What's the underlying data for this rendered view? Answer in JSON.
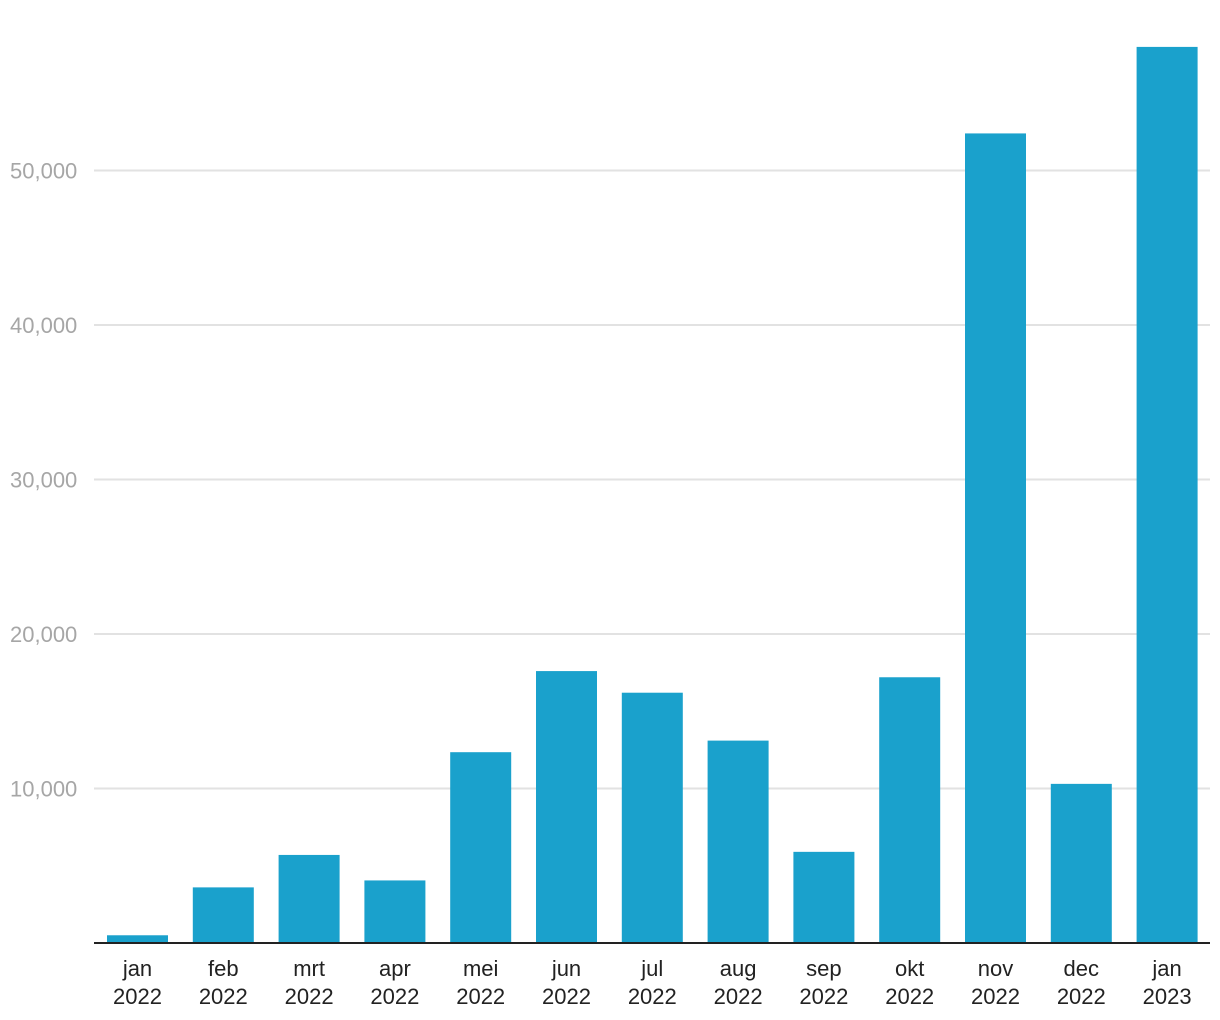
{
  "chart_data": {
    "type": "bar",
    "title": "",
    "xlabel": "",
    "ylabel": "",
    "categories": [
      [
        "jan",
        "2022"
      ],
      [
        "feb",
        "2022"
      ],
      [
        "mrt",
        "2022"
      ],
      [
        "apr",
        "2022"
      ],
      [
        "mei",
        "2022"
      ],
      [
        "jun",
        "2022"
      ],
      [
        "jul",
        "2022"
      ],
      [
        "aug",
        "2022"
      ],
      [
        "sep",
        "2022"
      ],
      [
        "okt",
        "2022"
      ],
      [
        "nov",
        "2022"
      ],
      [
        "dec",
        "2022"
      ],
      [
        "jan",
        "2023"
      ]
    ],
    "values": [
      500,
      3600,
      5700,
      4050,
      12350,
      17600,
      16200,
      13100,
      5900,
      17200,
      52400,
      10300,
      58000
    ],
    "yticks": [
      10000,
      20000,
      30000,
      40000,
      50000
    ],
    "ytick_labels": [
      "10,000",
      "20,000",
      "30,000",
      "40,000",
      "50,000"
    ],
    "ylim": [
      0,
      60000
    ],
    "grid": true,
    "legend": "none",
    "colors": {
      "bar": "#1aa1cc",
      "grid": "#e2e2e2",
      "ytick_text": "#a6a6a6",
      "xtick_text": "#222222",
      "baseline": "#222222"
    }
  }
}
